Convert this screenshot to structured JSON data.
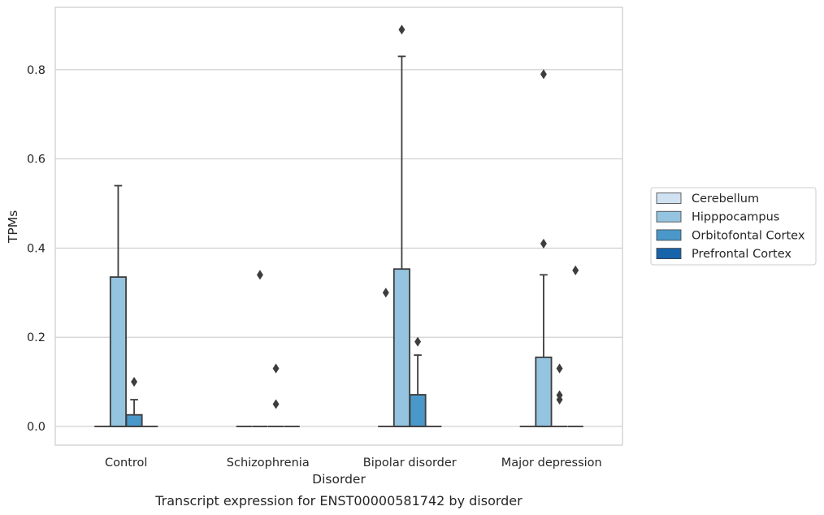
{
  "chart_data": {
    "type": "box",
    "title": "",
    "caption": "Transcript expression for ENST00000581742 by disorder",
    "xlabel": "Disorder",
    "ylabel": "TPMs",
    "ylim": [
      -0.042,
      0.94
    ],
    "yticks": [
      "0.0",
      "0.2",
      "0.4",
      "0.6",
      "0.8"
    ],
    "ytick_values": [
      0.0,
      0.2,
      0.4,
      0.6,
      0.8
    ],
    "grid": "horizontal",
    "legend_position": "right",
    "categories": [
      "Control",
      "Schizophrenia",
      "Bipolar disorder",
      "Major depression"
    ],
    "series": [
      {
        "name": "Cerebellum",
        "color": "#d0e1f2",
        "boxes": [
          {
            "q1": 0,
            "median": 0,
            "q3": 0,
            "whisker_low": 0,
            "whisker_high": 0,
            "outliers": []
          },
          {
            "q1": 0,
            "median": 0,
            "q3": 0,
            "whisker_low": 0,
            "whisker_high": 0,
            "outliers": []
          },
          {
            "q1": 0,
            "median": 0,
            "q3": 0,
            "whisker_low": 0,
            "whisker_high": 0,
            "outliers": [
              0.3
            ]
          },
          {
            "q1": 0,
            "median": 0,
            "q3": 0,
            "whisker_low": 0,
            "whisker_high": 0,
            "outliers": []
          }
        ]
      },
      {
        "name": "Hipppocampus",
        "color": "#94c4df",
        "boxes": [
          {
            "q1": 0,
            "median": 0,
            "q3": 0.335,
            "whisker_low": 0,
            "whisker_high": 0.54,
            "outliers": []
          },
          {
            "q1": 0,
            "median": 0,
            "q3": 0,
            "whisker_low": 0,
            "whisker_high": 0,
            "outliers": [
              0.34
            ]
          },
          {
            "q1": 0,
            "median": 0,
            "q3": 0.353,
            "whisker_low": 0,
            "whisker_high": 0.83,
            "outliers": [
              0.89
            ]
          },
          {
            "q1": 0,
            "median": 0,
            "q3": 0.155,
            "whisker_low": 0,
            "whisker_high": 0.34,
            "outliers": [
              0.41,
              0.79
            ]
          }
        ]
      },
      {
        "name": "Orbitofontal Cortex",
        "color": "#4a98c9",
        "boxes": [
          {
            "q1": 0,
            "median": 0,
            "q3": 0.026,
            "whisker_low": 0,
            "whisker_high": 0.06,
            "outliers": [
              0.1
            ]
          },
          {
            "q1": 0,
            "median": 0,
            "q3": 0,
            "whisker_low": 0,
            "whisker_high": 0,
            "outliers": [
              0.05,
              0.13
            ]
          },
          {
            "q1": 0,
            "median": 0,
            "q3": 0.071,
            "whisker_low": 0,
            "whisker_high": 0.16,
            "outliers": [
              0.19
            ]
          },
          {
            "q1": 0,
            "median": 0,
            "q3": 0,
            "whisker_low": 0,
            "whisker_high": 0,
            "outliers": [
              0.06,
              0.07,
              0.13
            ]
          }
        ]
      },
      {
        "name": "Prefrontal Cortex",
        "color": "#1764ab",
        "boxes": [
          {
            "q1": 0,
            "median": 0,
            "q3": 0,
            "whisker_low": 0,
            "whisker_high": 0,
            "outliers": []
          },
          {
            "q1": 0,
            "median": 0,
            "q3": 0,
            "whisker_low": 0,
            "whisker_high": 0,
            "outliers": []
          },
          {
            "q1": 0,
            "median": 0,
            "q3": 0,
            "whisker_low": 0,
            "whisker_high": 0,
            "outliers": []
          },
          {
            "q1": 0,
            "median": 0,
            "q3": 0,
            "whisker_low": 0,
            "whisker_high": 0,
            "outliers": [
              0.35
            ]
          }
        ]
      }
    ],
    "colors": {
      "line": "#3d3d3d",
      "grid": "#cccccc",
      "frame": "#cccccc"
    }
  }
}
